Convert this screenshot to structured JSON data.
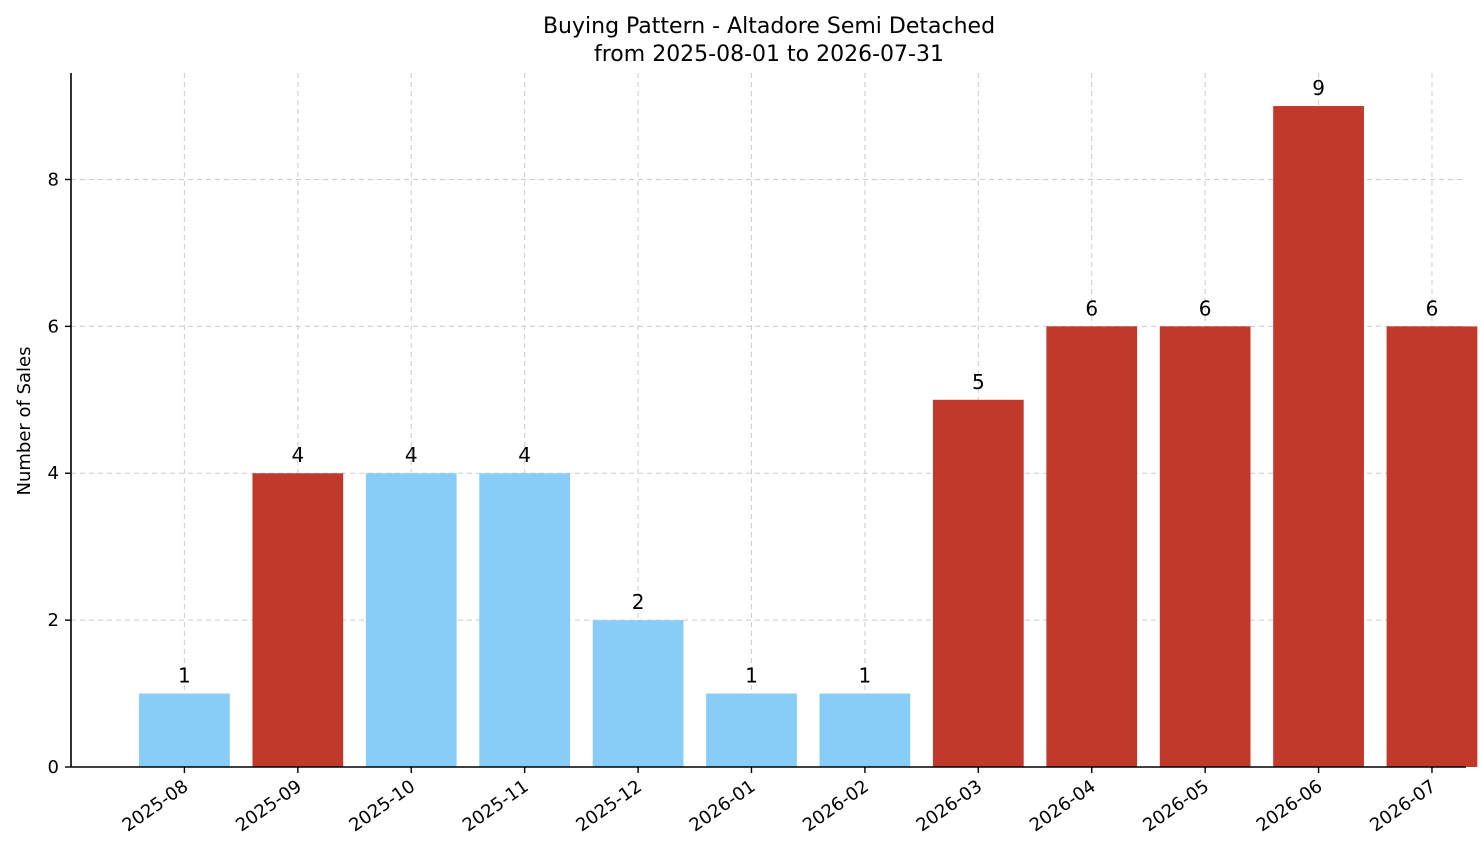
{
  "chart_data": {
    "type": "bar",
    "title": "Buying Pattern - Altadore Semi Detached",
    "subtitle": "from 2025-08-01 to 2026-07-31",
    "xlabel": "",
    "ylabel": "Number of Sales",
    "categories": [
      "2025-08",
      "2025-09",
      "2025-10",
      "2025-11",
      "2025-12",
      "2026-01",
      "2026-02",
      "2026-03",
      "2026-04",
      "2026-05",
      "2026-06",
      "2026-07"
    ],
    "values": [
      1,
      4,
      4,
      4,
      2,
      1,
      1,
      5,
      6,
      6,
      9,
      6
    ],
    "bar_colors": [
      "#87cdf8",
      "#c0392b",
      "#87cdf8",
      "#87cdf8",
      "#87cdf8",
      "#87cdf8",
      "#87cdf8",
      "#c0392b",
      "#c0392b",
      "#c0392b",
      "#c0392b",
      "#c0392b"
    ],
    "ylim": [
      0,
      9.45
    ],
    "yticks": [
      0,
      2,
      4,
      6,
      8
    ],
    "grid": true,
    "x_tick_rotation_deg": 35
  }
}
